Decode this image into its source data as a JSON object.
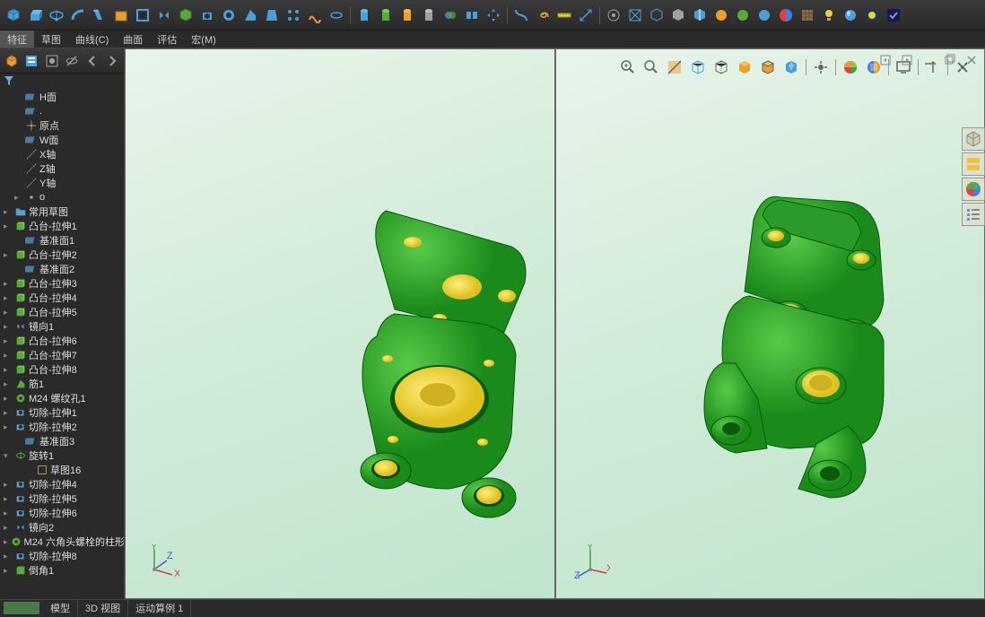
{
  "ribbon_tabs": [
    "特征",
    "草图",
    "曲线(C)",
    "曲面",
    "评估",
    "宏(M)"
  ],
  "active_ribbon_tab": 0,
  "toolbar_icons": [
    "cube",
    "extrude",
    "revolve",
    "sweep",
    "loft",
    "box",
    "shell",
    "mirror",
    "cube2",
    "cut",
    "hole",
    "rib",
    "draft",
    "pattern",
    "curve",
    "wrap",
    "sep",
    "boss",
    "boss2",
    "boss3",
    "boss4",
    "join",
    "split",
    "move",
    "sep",
    "curve2",
    "spiral",
    "ruler",
    "measure",
    "sep",
    "view1",
    "view2",
    "view3",
    "view4",
    "view5",
    "view6",
    "view7",
    "view8",
    "appearance",
    "texture",
    "lights",
    "material",
    "render",
    "check"
  ],
  "sidebar_icons": [
    "assembly",
    "config",
    "display",
    "hide",
    "arrow-left",
    "arrow-right"
  ],
  "tree": [
    {
      "icon": "plane",
      "label": "H面",
      "indent": 1
    },
    {
      "icon": "plane",
      "label": ".",
      "indent": 1
    },
    {
      "icon": "origin",
      "label": "原点",
      "indent": 1
    },
    {
      "icon": "plane",
      "label": "W面",
      "indent": 1
    },
    {
      "icon": "axis",
      "label": "X轴",
      "indent": 1
    },
    {
      "icon": "axis",
      "label": "Z轴",
      "indent": 1
    },
    {
      "icon": "axis",
      "label": "Y轴",
      "indent": 1
    },
    {
      "icon": "point",
      "label": "o",
      "indent": 1,
      "exp": "▸"
    },
    {
      "icon": "folder",
      "label": "常用草图",
      "indent": 0,
      "exp": "▸"
    },
    {
      "icon": "feature",
      "label": "凸台-拉伸1",
      "indent": 0,
      "exp": "▸"
    },
    {
      "icon": "plane",
      "label": "基准面1",
      "indent": 1
    },
    {
      "icon": "feature",
      "label": "凸台-拉伸2",
      "indent": 0,
      "exp": "▸"
    },
    {
      "icon": "plane",
      "label": "基准面2",
      "indent": 1
    },
    {
      "icon": "feature",
      "label": "凸台-拉伸3",
      "indent": 0,
      "exp": "▸"
    },
    {
      "icon": "feature",
      "label": "凸台-拉伸4",
      "indent": 0,
      "exp": "▸"
    },
    {
      "icon": "feature",
      "label": "凸台-拉伸5",
      "indent": 0,
      "exp": "▸"
    },
    {
      "icon": "mirror",
      "label": "镜向1",
      "indent": 0,
      "exp": "▸"
    },
    {
      "icon": "feature",
      "label": "凸台-拉伸6",
      "indent": 0,
      "exp": "▸"
    },
    {
      "icon": "feature",
      "label": "凸台-拉伸7",
      "indent": 0,
      "exp": "▸"
    },
    {
      "icon": "feature",
      "label": "凸台-拉伸8",
      "indent": 0,
      "exp": "▸"
    },
    {
      "icon": "rib",
      "label": "筋1",
      "indent": 0,
      "exp": "▸"
    },
    {
      "icon": "hole",
      "label": "M24 螺纹孔1",
      "indent": 0,
      "exp": "▸"
    },
    {
      "icon": "cut",
      "label": "切除-拉伸1",
      "indent": 0,
      "exp": "▸"
    },
    {
      "icon": "cut",
      "label": "切除-拉伸2",
      "indent": 0,
      "exp": "▸"
    },
    {
      "icon": "plane",
      "label": "基准面3",
      "indent": 1
    },
    {
      "icon": "revolve",
      "label": "旋转1",
      "indent": 0,
      "exp": "▾"
    },
    {
      "icon": "sketch",
      "label": "草图16",
      "indent": 2
    },
    {
      "icon": "cut",
      "label": "切除-拉伸4",
      "indent": 0,
      "exp": "▸"
    },
    {
      "icon": "cut",
      "label": "切除-拉伸5",
      "indent": 0,
      "exp": "▸"
    },
    {
      "icon": "cut",
      "label": "切除-拉伸6",
      "indent": 0,
      "exp": "▸"
    },
    {
      "icon": "mirror",
      "label": "镜向2",
      "indent": 0,
      "exp": "▸"
    },
    {
      "icon": "hole",
      "label": "M24 六角头螺栓的柱形",
      "indent": 0,
      "exp": "▸"
    },
    {
      "icon": "cut",
      "label": "切除-拉伸8",
      "indent": 0,
      "exp": "▸"
    },
    {
      "icon": "fillet",
      "label": "倒角1",
      "indent": 0,
      "exp": "▸"
    }
  ],
  "viewport_icons": [
    "zoom-fit",
    "zoom-window",
    "section",
    "wireframe",
    "hidden",
    "shaded",
    "shaded-edges",
    "perspective",
    "sep",
    "orient",
    "sep",
    "appearance1",
    "appearance2",
    "sep",
    "display",
    "sep",
    "axis-up",
    "sep",
    "settings"
  ],
  "bottom_tabs": [
    "模型",
    "3D 视图",
    "运动算例 1"
  ],
  "colors": {
    "model_green": "#2ca82c",
    "model_yellow": "#f0e040",
    "model_dark": "#0a5a0a",
    "bg_grad_start": "#e8f4ea",
    "bg_grad_end": "#c0e4cc",
    "icon_blue": "#4a9fd8",
    "icon_orange": "#e8a030",
    "icon_green": "#5aaa3a"
  },
  "axes_labels": {
    "x": "X",
    "y": "Y",
    "z": "Z"
  }
}
